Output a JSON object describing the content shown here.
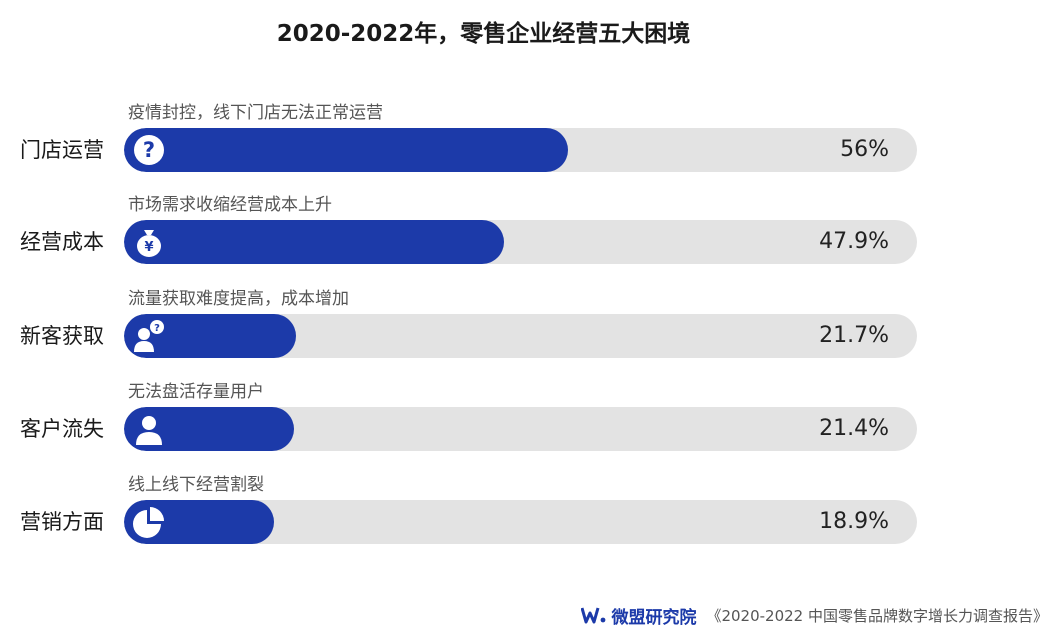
{
  "chart_data": {
    "type": "bar",
    "orientation": "horizontal",
    "title": "2020-2022年，零售企业经营五大困境",
    "categories": [
      "门店运营",
      "经营成本",
      "新客获取",
      "客户流失",
      "营销方面"
    ],
    "descriptions": [
      "疫情封控，线下门店无法正常运营",
      "市场需求收缩经营成本上升",
      "流量获取难度提高，成本增加",
      "无法盘活存量用户",
      "线上线下经营割裂"
    ],
    "values": [
      56,
      47.9,
      21.7,
      21.4,
      18.9
    ],
    "value_labels": [
      "56%",
      "47.9%",
      "21.7%",
      "21.4%",
      "18.9%"
    ],
    "unit": "%",
    "xlim": [
      0,
      100
    ],
    "grid": false,
    "icons": [
      "question-icon",
      "money-bag-icon",
      "user-question-icon",
      "user-icon",
      "pie-chart-icon"
    ],
    "colors": {
      "bar": "#1c3aa9",
      "track": "#e3e3e3"
    }
  },
  "footer": {
    "brand": "微盟研究院",
    "source": "《2020-2022 中国零售品牌数字增长力调查报告》"
  }
}
